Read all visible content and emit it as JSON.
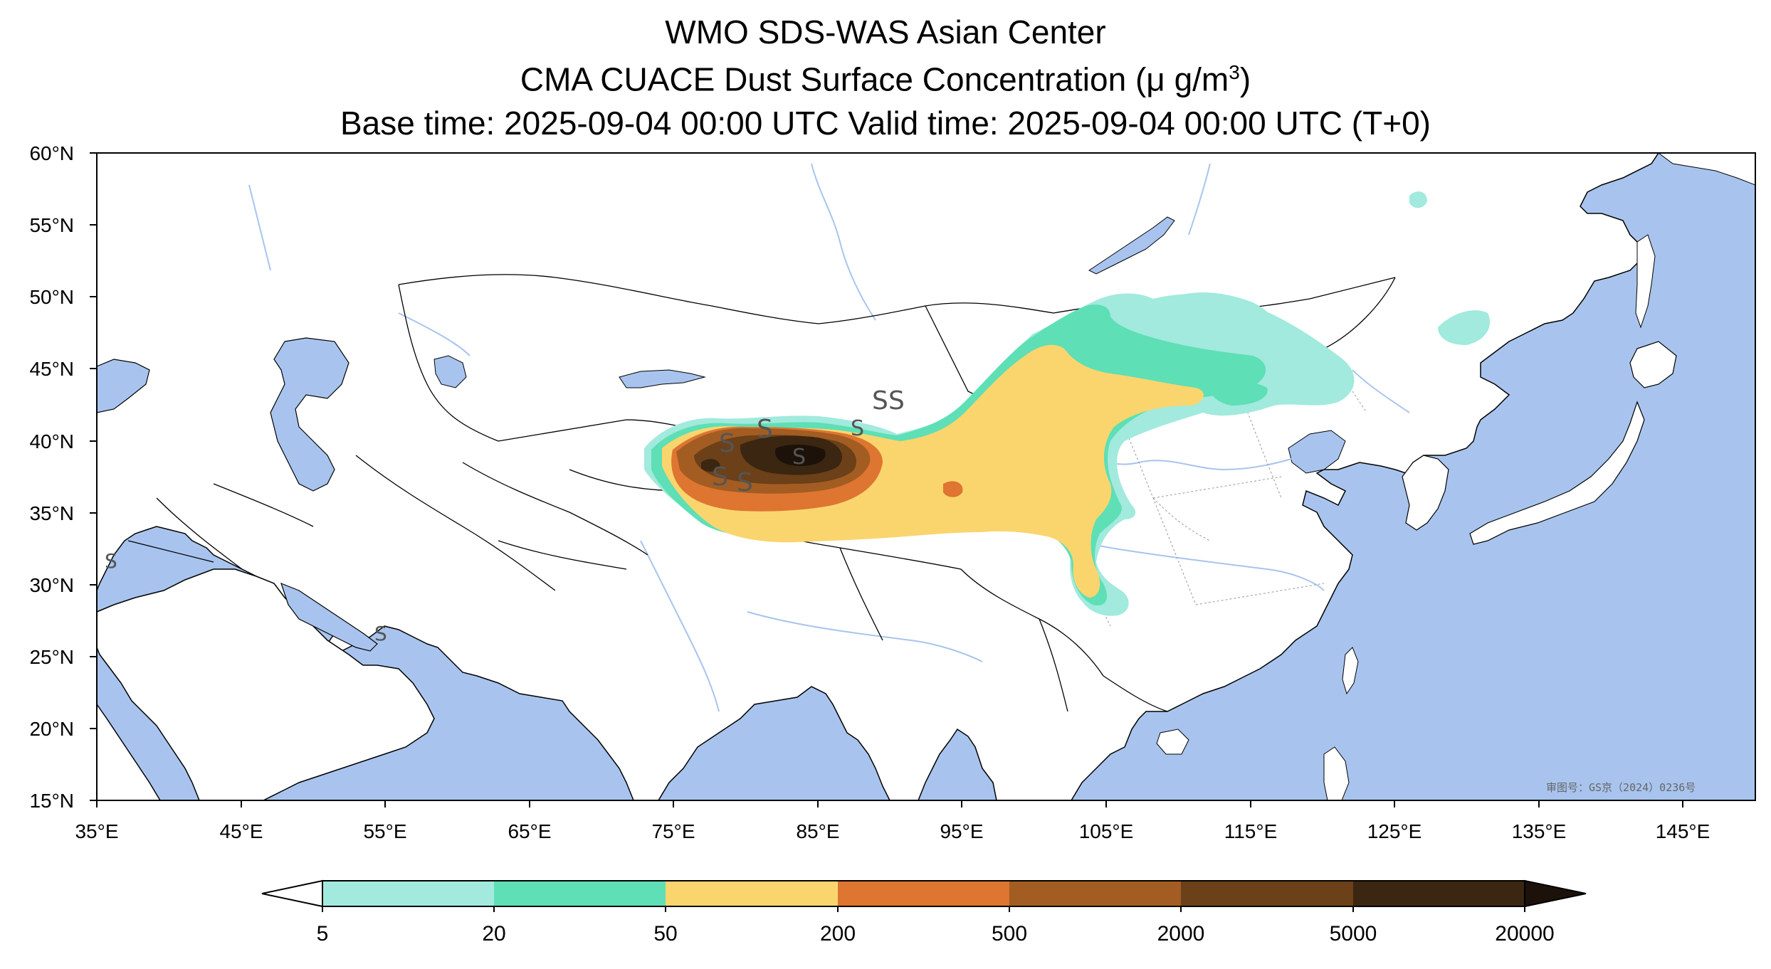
{
  "header": {
    "title": "WMO SDS-WAS Asian Center",
    "subtitle_prefix": "CMA CUACE Dust Surface Concentration (",
    "subtitle_unit_base": "μ g/m",
    "subtitle_unit_exp": "3",
    "subtitle_suffix": ")",
    "time_line": "Base time: 2025-09-04 00:00 UTC Valid time: 2025-09-04 00:00 UTC (T+0)"
  },
  "map": {
    "lon_range": [
      35,
      150
    ],
    "lat_range": [
      15,
      60
    ],
    "lon_ticks": [
      "35°E",
      "45°E",
      "55°E",
      "65°E",
      "75°E",
      "85°E",
      "95°E",
      "105°E",
      "115°E",
      "125°E",
      "135°E",
      "145°E"
    ],
    "lat_ticks": [
      "60°N",
      "55°N",
      "50°N",
      "45°N",
      "40°N",
      "35°N",
      "30°N",
      "25°N",
      "20°N",
      "15°N"
    ],
    "approval_stamp": "审图号：GS京（2024）0236号",
    "storm_symbol": "S",
    "colors": {
      "ocean": "#a8c4ee",
      "land": "#ffffff",
      "border": "#000000",
      "river": "#a8c4ee"
    }
  },
  "colorbar": {
    "levels": [
      "5",
      "20",
      "50",
      "200",
      "500",
      "2000",
      "5000",
      "20000"
    ],
    "colors": [
      "#ffffff",
      "#a1eadd",
      "#5edfb5",
      "#fad56e",
      "#de7531",
      "#a35d22",
      "#6c4018",
      "#3b2612",
      "#1d120a"
    ]
  }
}
